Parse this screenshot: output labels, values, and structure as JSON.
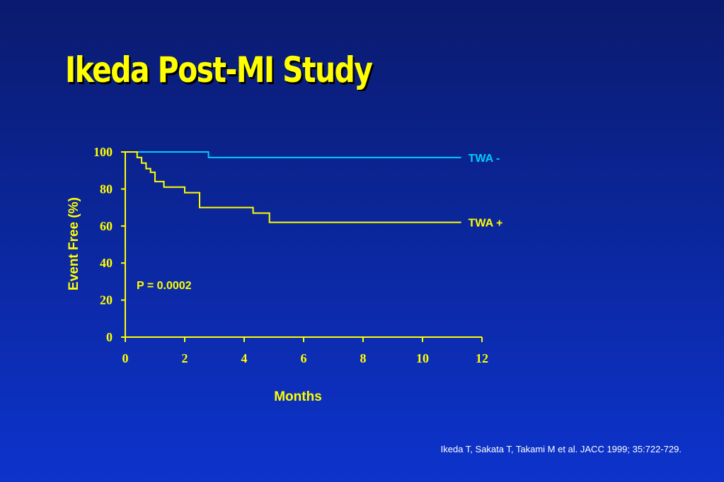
{
  "slide": {
    "title": "Ikeda Post-MI Study",
    "citation": "Ikeda T, Sakata T, Takami M et al. JACC 1999; 35:722-729."
  },
  "chart_data": {
    "type": "line",
    "step": true,
    "xlabel": "Months",
    "ylabel": "Event Free (%)",
    "xlim": [
      0,
      12
    ],
    "ylim": [
      0,
      100
    ],
    "xticks": [
      0,
      2,
      4,
      6,
      8,
      10,
      12
    ],
    "yticks": [
      0,
      20,
      40,
      60,
      80,
      100
    ],
    "grid": false,
    "annotation": "P = 0.0002",
    "series": [
      {
        "name": "TWA -",
        "color": "#00ccff",
        "x": [
          0,
          2.8,
          2.8,
          11.3
        ],
        "y": [
          100,
          100,
          97,
          97
        ]
      },
      {
        "name": "TWA +",
        "color": "#ffff00",
        "x": [
          0,
          0.4,
          0.4,
          0.55,
          0.55,
          0.7,
          0.7,
          0.85,
          0.85,
          1.0,
          1.0,
          1.3,
          1.3,
          2.0,
          2.0,
          2.5,
          2.5,
          4.3,
          4.3,
          4.85,
          4.85,
          11.3
        ],
        "y": [
          100,
          100,
          97,
          97,
          94,
          94,
          91,
          91,
          89,
          89,
          84,
          84,
          81,
          81,
          78,
          78,
          70,
          70,
          67,
          67,
          62,
          62
        ]
      }
    ]
  }
}
